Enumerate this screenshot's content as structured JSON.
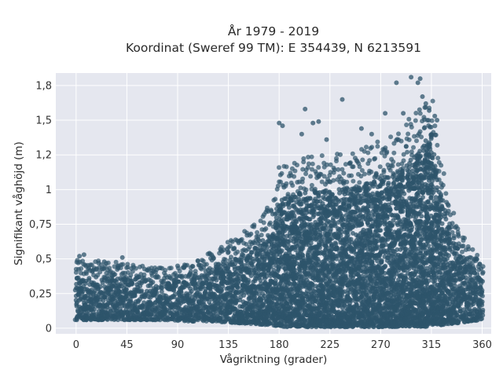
{
  "chart_data": {
    "type": "scatter",
    "title": "År 1979 - 2019",
    "subtitle": "Koordinat (Sweref 99 TM): E 354439, N 6213591",
    "xlabel": "Vågriktning (grader)",
    "ylabel": "Signifikant våghöjd (m)",
    "xlim": [
      -18,
      368
    ],
    "ylim": [
      -0.04,
      1.84
    ],
    "x_ticks": [
      0,
      45,
      90,
      135,
      180,
      225,
      270,
      315,
      360
    ],
    "x_tick_labels": [
      "0",
      "45",
      "90",
      "135",
      "180",
      "225",
      "270",
      "315",
      "360"
    ],
    "y_ticks": [
      0,
      0.25,
      0.5,
      0.75,
      1,
      1.25,
      1.5,
      1.75
    ],
    "y_tick_labels": [
      "0",
      "0,25",
      "0,5",
      "0,75",
      "1",
      "1,2",
      "1,5",
      "1,8"
    ],
    "grid": true,
    "colors": {
      "marker": "#2e546b",
      "plot_bg": "#e5e7ef",
      "grid": "#ffffff"
    },
    "envelope": {
      "x": [
        0,
        20,
        40,
        60,
        80,
        100,
        120,
        140,
        160,
        175,
        180,
        200,
        225,
        250,
        270,
        290,
        300,
        310,
        315,
        320,
        330,
        340,
        350,
        360
      ],
      "y_min": [
        0.06,
        0.06,
        0.06,
        0.06,
        0.06,
        0.05,
        0.05,
        0.04,
        0.03,
        0.02,
        0.01,
        0.01,
        0.01,
        0.01,
        0.01,
        0.01,
        0.01,
        0.01,
        0.02,
        0.02,
        0.03,
        0.04,
        0.05,
        0.06
      ],
      "y_max_dense": [
        0.38,
        0.37,
        0.36,
        0.34,
        0.32,
        0.35,
        0.42,
        0.5,
        0.6,
        0.72,
        0.92,
        0.98,
        1.0,
        1.02,
        1.08,
        1.15,
        1.25,
        1.35,
        1.4,
        1.1,
        0.75,
        0.55,
        0.45,
        0.38
      ]
    },
    "outliers": [
      {
        "x": 3,
        "y": 0.52
      },
      {
        "x": 7,
        "y": 0.53
      },
      {
        "x": 20,
        "y": 0.47
      },
      {
        "x": 25,
        "y": 0.48
      },
      {
        "x": 41,
        "y": 0.51
      },
      {
        "x": 90,
        "y": 0.45
      },
      {
        "x": 120,
        "y": 0.53
      },
      {
        "x": 135,
        "y": 0.55
      },
      {
        "x": 155,
        "y": 0.68
      },
      {
        "x": 180,
        "y": 1.48
      },
      {
        "x": 183,
        "y": 1.46
      },
      {
        "x": 200,
        "y": 1.4
      },
      {
        "x": 203,
        "y": 1.58
      },
      {
        "x": 210,
        "y": 1.48
      },
      {
        "x": 215,
        "y": 1.49
      },
      {
        "x": 222,
        "y": 1.36
      },
      {
        "x": 236,
        "y": 1.65
      },
      {
        "x": 253,
        "y": 1.44
      },
      {
        "x": 262,
        "y": 1.4
      },
      {
        "x": 274,
        "y": 1.55
      },
      {
        "x": 284,
        "y": 1.77
      },
      {
        "x": 290,
        "y": 1.55
      },
      {
        "x": 297,
        "y": 1.81
      },
      {
        "x": 303,
        "y": 1.77
      },
      {
        "x": 305,
        "y": 1.8
      },
      {
        "x": 307,
        "y": 1.67
      },
      {
        "x": 310,
        "y": 1.62
      },
      {
        "x": 313,
        "y": 1.57
      },
      {
        "x": 318,
        "y": 1.53
      },
      {
        "x": 320,
        "y": 1.5
      },
      {
        "x": 355,
        "y": 0.5
      },
      {
        "x": 359,
        "y": 0.43
      }
    ]
  }
}
